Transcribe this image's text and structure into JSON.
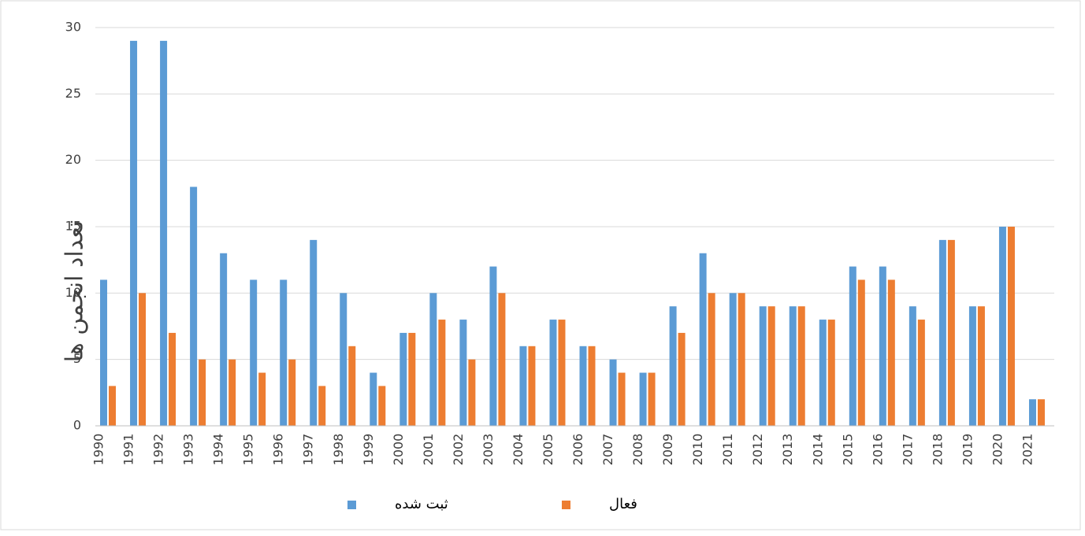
{
  "chart_data": {
    "type": "bar",
    "y_label": "تعداد انجمن ها",
    "categories": [
      "1990",
      "1991",
      "1992",
      "1993",
      "1994",
      "1995",
      "1996",
      "1997",
      "1998",
      "1999",
      "2000",
      "2001",
      "2002",
      "2003",
      "2004",
      "2005",
      "2006",
      "2007",
      "2008",
      "2009",
      "2010",
      "2011",
      "2012",
      "2013",
      "2014",
      "2015",
      "2016",
      "2017",
      "2018",
      "2019",
      "2020",
      "2021"
    ],
    "series": [
      {
        "name": "ثبت شده",
        "color": "#5b9bd5",
        "values": [
          11,
          29,
          29,
          18,
          13,
          11,
          11,
          14,
          10,
          4,
          7,
          10,
          8,
          12,
          6,
          8,
          6,
          5,
          4,
          9,
          13,
          10,
          9,
          9,
          8,
          12,
          12,
          9,
          14,
          9,
          15,
          2
        ]
      },
      {
        "name": "فعال",
        "color": "#ed7d31",
        "values": [
          3,
          10,
          7,
          5,
          5,
          4,
          5,
          3,
          6,
          3,
          7,
          8,
          5,
          10,
          6,
          8,
          6,
          4,
          4,
          7,
          10,
          10,
          9,
          9,
          8,
          11,
          11,
          8,
          14,
          9,
          15,
          2
        ]
      }
    ],
    "ylim": [
      0,
      30
    ],
    "yticks": [
      0,
      5,
      10,
      15,
      20,
      25,
      30
    ],
    "grid": true,
    "legend": "bottom"
  }
}
